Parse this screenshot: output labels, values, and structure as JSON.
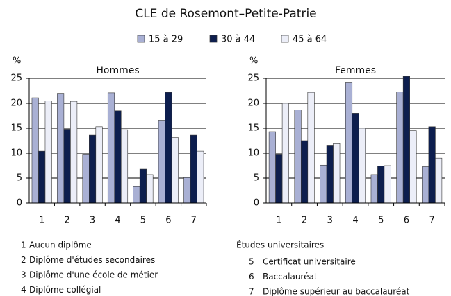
{
  "title": "CLE de Rosemont–Petite-Patrie",
  "chart_data": [
    {
      "type": "bar",
      "title": "Hommes",
      "y_label": "%",
      "categories": [
        "1",
        "2",
        "3",
        "4",
        "5",
        "6",
        "7"
      ],
      "series": [
        {
          "name": "15 à 29",
          "color": "#a9b0d4",
          "values": [
            21.1,
            22,
            9.8,
            22.1,
            3.3,
            16.6,
            5.1
          ]
        },
        {
          "name": "30 à 44",
          "color": "#0d1e4e",
          "values": [
            10.4,
            14.8,
            13.6,
            18.5,
            6.8,
            22.2,
            13.6
          ]
        },
        {
          "name": "45 à 64",
          "color": "#eceef8",
          "values": [
            20.5,
            20.4,
            15.3,
            14.7,
            5.7,
            13.1,
            10.4
          ]
        }
      ],
      "ylim": [
        0,
        25
      ],
      "yticks": [
        0,
        5,
        10,
        15,
        20,
        25
      ],
      "grid": true
    },
    {
      "type": "bar",
      "title": "Femmes",
      "y_label": "%",
      "categories": [
        "1",
        "2",
        "3",
        "4",
        "5",
        "6",
        "7"
      ],
      "series": [
        {
          "color": "#a9b0d4",
          "values": [
            14.3,
            18.7,
            7.6,
            24.1,
            5.7,
            22.3,
            7.3
          ]
        },
        {
          "color": "#0d1e4e",
          "values": [
            9.8,
            12.5,
            11.6,
            18.0,
            7.4,
            25.4,
            15.3
          ]
        },
        {
          "color": "#eceef8",
          "values": [
            20.0,
            22.2,
            11.9,
            15.0,
            7.5,
            14.5,
            9.0
          ]
        }
      ],
      "ylim": [
        0,
        25
      ],
      "yticks": [
        0,
        5,
        10,
        15,
        20,
        25
      ],
      "grid": true
    }
  ],
  "notes": {
    "left": [
      {
        "key": "1",
        "text": "Aucun diplôme"
      },
      {
        "key": "2",
        "text": "Diplôme d'études secondaires"
      },
      {
        "key": "3",
        "text": "Diplôme d'une école de métier"
      },
      {
        "key": "4",
        "text": "Diplôme collégial"
      }
    ],
    "right_heading": "Études universitaires",
    "right": [
      {
        "key": "5",
        "text": "Certificat universitaire"
      },
      {
        "key": "6",
        "text": "Baccalauréat"
      },
      {
        "key": "7",
        "text": "Diplôme supérieur au baccalauréat"
      }
    ]
  }
}
